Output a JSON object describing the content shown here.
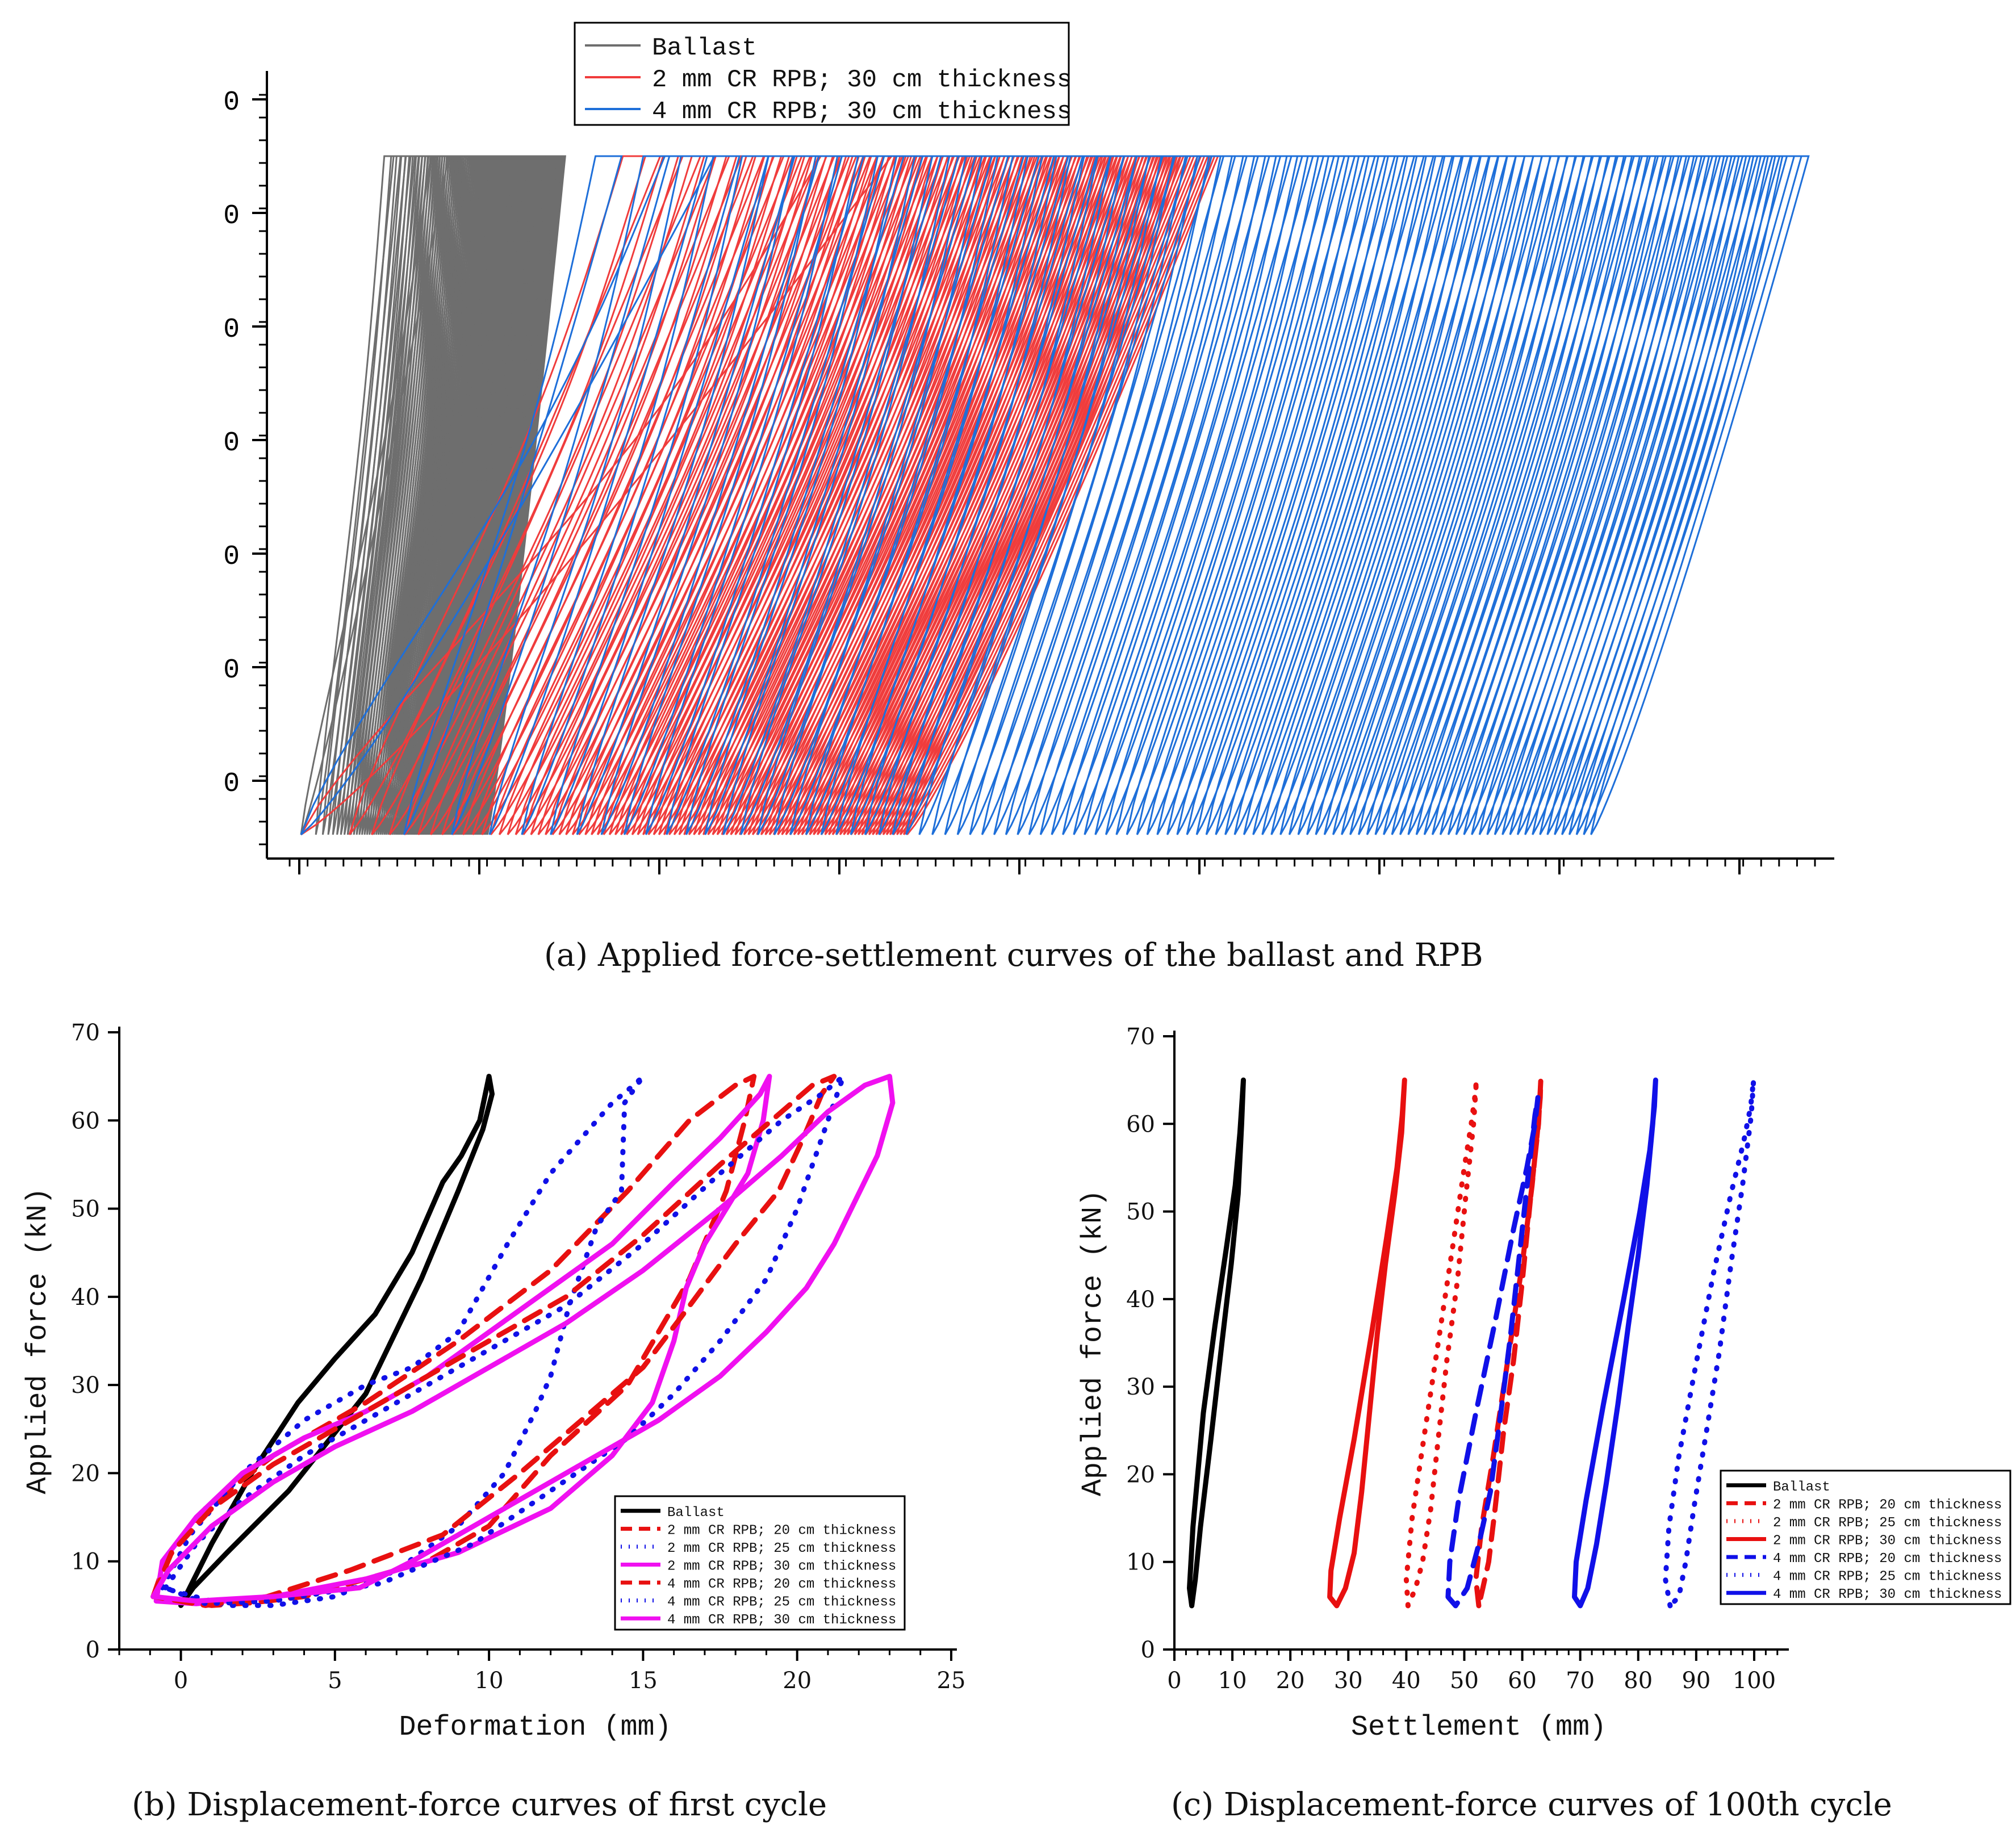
{
  "chart_data": [
    {
      "id": "a",
      "type": "line",
      "caption": "(a) Applied force-settlement curves of the ballast and RPB",
      "y_tick_labels": [
        "0",
        "0",
        "0",
        "0",
        "0",
        "0",
        "0"
      ],
      "x_tick_labels": [],
      "xlim": [
        0,
        95
      ],
      "ylim": [
        0,
        70
      ],
      "legend": {
        "position": "top-center",
        "entries": [
          {
            "name": "Ballast",
            "color": "#6e6e6e"
          },
          {
            "name": "2 mm CR RPB; 30 cm thickness",
            "color": "#f03c3c"
          },
          {
            "name": "4 mm CR RPB; 30 cm thickness",
            "color": "#1e6fd9"
          }
        ]
      },
      "series": [
        {
          "name": "Ballast",
          "color": "#6e6e6e",
          "cycles": 100,
          "first_cycle_start": 0,
          "settlement_range": [
            0,
            12
          ],
          "loop_width": 5
        },
        {
          "name": "2 mm CR RPB; 30 cm thickness",
          "color": "#f03c3c",
          "cycles": 100,
          "first_cycle_start": 0,
          "settlement_range": [
            0,
            39
          ],
          "loop_width": 20
        },
        {
          "name": "4 mm CR RPB; 30 cm thickness",
          "color": "#1e6fd9",
          "cycles": 100,
          "first_cycle_start": 0,
          "settlement_range": [
            0,
            83
          ],
          "loop_width": 14
        }
      ],
      "force_range": [
        5,
        65
      ]
    },
    {
      "id": "b",
      "type": "line",
      "caption": "(b) Displacement-force curves of first cycle",
      "xlabel": "Deformation (mm)",
      "ylabel": "Applied force (kN)",
      "xlim": [
        -2,
        25
      ],
      "ylim": [
        0,
        70
      ],
      "x_ticks": [
        0,
        5,
        10,
        15,
        20,
        25
      ],
      "x_tick_labels": [
        "0",
        "5",
        "10",
        "15",
        "20",
        "25"
      ],
      "y_ticks": [
        0,
        10,
        20,
        30,
        40,
        50,
        60,
        70
      ],
      "y_tick_labels": [
        "0",
        "10",
        "20",
        "30",
        "40",
        "50",
        "60",
        "70"
      ],
      "legend": {
        "position": "bottom-right",
        "entries": [
          {
            "name": "Ballast",
            "color": "#000000",
            "style": "solid"
          },
          {
            "name": "2 mm CR RPB; 20 cm thickness",
            "color": "#e81010",
            "style": "dashed"
          },
          {
            "name": "2 mm CR RPB; 25 cm thickness",
            "color": "#1010e8",
            "style": "dotted"
          },
          {
            "name": "2 mm CR RPB; 30 cm thickness",
            "color": "#f010f0",
            "style": "solid"
          },
          {
            "name": "4 mm CR RPB; 20 cm thickness",
            "color": "#e81010",
            "style": "dashed"
          },
          {
            "name": "4 mm CR RPB; 25 cm thickness",
            "color": "#1010e8",
            "style": "dotted"
          },
          {
            "name": "4 mm CR RPB; 30 cm thickness",
            "color": "#f010f0",
            "style": "solid"
          }
        ]
      },
      "series": [
        {
          "name": "Ballast",
          "color": "#000000",
          "style": "solid",
          "x": [
            0,
            0.4,
            1.5,
            3.5,
            6,
            7.8,
            9,
            9.8,
            10.1,
            10.0,
            9.7,
            9.1,
            8.5,
            7.5,
            6.3,
            5,
            3.8,
            2.3,
            1,
            0
          ],
          "y": [
            5,
            7,
            11,
            18,
            29,
            42,
            52,
            59,
            63,
            65,
            60,
            56,
            53,
            45,
            38,
            33,
            28,
            20,
            12,
            5
          ]
        },
        {
          "name": "2 mm CR RPB; 20 cm thickness",
          "color": "#e81010",
          "style": "dashed",
          "x": [
            -0.9,
            -0.5,
            0.8,
            3,
            6,
            9,
            12,
            14.5,
            16.5,
            18,
            18.6,
            18.3,
            17.7,
            16.5,
            14.5,
            12,
            10,
            8,
            6,
            4,
            2.3,
            1,
            -0.9
          ],
          "y": [
            6,
            10,
            16,
            22,
            28,
            35,
            43,
            52,
            60,
            64,
            65,
            60,
            52,
            42,
            30,
            22,
            14,
            10,
            8,
            6,
            5.3,
            5,
            6
          ]
        },
        {
          "name": "2 mm CR RPB; 25 cm thickness",
          "color": "#1010e8",
          "style": "dotted",
          "x": [
            -0.6,
            0.3,
            2,
            4,
            6,
            7.5,
            9,
            10.6,
            12,
            13,
            14,
            14.7,
            15,
            14.4,
            14.3,
            13.5,
            12.6,
            12,
            11.5,
            10.5,
            9,
            7,
            5,
            3,
            1.5,
            -0.6
          ],
          "y": [
            7,
            13,
            20,
            26,
            30,
            32,
            36,
            46,
            54,
            58,
            62,
            64,
            65,
            62,
            52,
            48,
            39,
            31,
            27,
            20,
            14,
            9,
            6,
            5,
            5,
            7
          ]
        },
        {
          "name": "2 mm CR RPB; 30 cm thickness",
          "color": "#f010f0",
          "style": "solid",
          "x": [
            -0.8,
            -0.6,
            0.5,
            2,
            4,
            6,
            8,
            10,
            12,
            14,
            16,
            17.5,
            18.8,
            19.1,
            18.9,
            18.4,
            17.7,
            17,
            16.4,
            16,
            15.3,
            14,
            12,
            9,
            6,
            3,
            0.5,
            -0.8
          ],
          "y": [
            5.5,
            10,
            15,
            20,
            24,
            27,
            31,
            36,
            41,
            46,
            53,
            58,
            63,
            65,
            60,
            54,
            50,
            46,
            41,
            35,
            28,
            22,
            16,
            11,
            8,
            6,
            5.2,
            5.5
          ]
        },
        {
          "name": "4 mm CR RPB; 20 cm thickness",
          "color": "#e81010",
          "style": "dashed",
          "x": [
            -0.9,
            -0.3,
            1,
            3,
            5.5,
            8,
            10,
            12.5,
            15,
            17.5,
            19.5,
            20.5,
            21.2,
            20.8,
            20.2,
            19.4,
            18,
            16.3,
            15,
            13,
            11,
            8.5,
            5.5,
            2.8,
            0.8,
            -0.9
          ],
          "y": [
            6,
            11,
            16,
            21,
            26,
            31,
            35,
            40,
            47,
            55,
            61,
            64,
            65,
            63,
            58,
            52,
            46,
            38,
            32,
            26,
            20,
            13,
            9,
            6,
            5,
            6
          ]
        },
        {
          "name": "4 mm CR RPB; 25 cm thickness",
          "color": "#1010e8",
          "style": "dotted",
          "x": [
            -0.5,
            0.5,
            2,
            4,
            6,
            8,
            10,
            12.5,
            15,
            17.5,
            19.5,
            20.8,
            21.5,
            21.3,
            20.8,
            20,
            19,
            17.5,
            16,
            14.5,
            12,
            9.5,
            6.5,
            3,
            0.8,
            -0.5
          ],
          "y": [
            7,
            12,
            17,
            22,
            26,
            30,
            34,
            39,
            46,
            54,
            60,
            63,
            65,
            63,
            58,
            50,
            42,
            35,
            29,
            24,
            18,
            12,
            7.5,
            5.5,
            5.2,
            7
          ]
        },
        {
          "name": "4 mm CR RPB; 30 cm thickness",
          "color": "#f010f0",
          "style": "solid",
          "x": [
            -0.9,
            -0.4,
            1,
            3,
            5,
            7.5,
            10,
            12.5,
            15,
            17.5,
            19.5,
            21,
            22.2,
            23.0,
            23.1,
            22.6,
            21.9,
            21.2,
            20.3,
            19,
            17.5,
            15.5,
            13.5,
            11.5,
            9.5,
            7.5,
            5.8,
            3,
            0.5,
            -0.9
          ],
          "y": [
            6,
            9,
            14,
            19,
            23,
            27,
            32,
            37,
            43,
            50,
            56,
            61,
            64,
            65,
            62,
            56,
            51,
            46,
            41,
            36,
            31,
            26,
            22,
            18,
            14,
            10,
            7,
            6,
            5.5,
            6
          ]
        }
      ]
    },
    {
      "id": "c",
      "type": "line",
      "caption": "(c) Displacement-force curves of 100th cycle",
      "xlabel": "Settlement (mm)",
      "ylabel": "Applied force (kN)",
      "xlim": [
        0,
        105
      ],
      "ylim": [
        0,
        70
      ],
      "x_ticks": [
        0,
        10,
        20,
        30,
        40,
        50,
        60,
        70,
        80,
        90,
        100
      ],
      "x_tick_labels": [
        "0",
        "10",
        "20",
        "30",
        "40",
        "50",
        "60",
        "70",
        "80",
        "90",
        "100"
      ],
      "y_ticks": [
        0,
        10,
        20,
        30,
        40,
        50,
        60,
        70
      ],
      "y_tick_labels": [
        "0",
        "10",
        "20",
        "30",
        "40",
        "50",
        "60",
        "70"
      ],
      "legend": {
        "position": "right",
        "entries": [
          {
            "name": "Ballast",
            "color": "#000000",
            "style": "solid"
          },
          {
            "name": "2 mm CR RPB; 20 cm thickness",
            "color": "#e81010",
            "style": "dashed"
          },
          {
            "name": "2 mm CR RPB; 25 cm thickness",
            "color": "#e81010",
            "style": "dotted"
          },
          {
            "name": "2 mm CR RPB; 30 cm thickness",
            "color": "#e81010",
            "style": "solid"
          },
          {
            "name": "4 mm CR RPB; 20 cm thickness",
            "color": "#1010e8",
            "style": "dashed"
          },
          {
            "name": "4 mm CR RPB; 25 cm thickness",
            "color": "#1010e8",
            "style": "dotted"
          },
          {
            "name": "4 mm CR RPB; 30 cm thickness",
            "color": "#1010e8",
            "style": "solid"
          }
        ]
      },
      "series": [
        {
          "name": "Ballast",
          "color": "#000000",
          "style": "solid",
          "x": [
            3,
            2.6,
            3.2,
            5,
            7,
            9,
            10.5,
            11.3,
            11.7,
            11.9,
            11.6,
            11,
            9.8,
            8.2,
            6.3,
            4.5,
            3.6,
            3
          ],
          "y": [
            5,
            7,
            14,
            27,
            37,
            46,
            53,
            59,
            63,
            65,
            60,
            52,
            44,
            35,
            24,
            14,
            8,
            5
          ]
        },
        {
          "name": "2 mm CR RPB; 20 cm thickness",
          "color": "#e81010",
          "style": "dashed",
          "x": [
            52.5,
            52,
            53,
            55,
            57.5,
            60,
            61.7,
            62.6,
            63.1,
            63.2,
            62.8,
            61.5,
            60,
            58.5,
            56.8,
            55.3,
            54.2,
            53.2,
            52.5
          ],
          "y": [
            5,
            8,
            14,
            22,
            33,
            44,
            53,
            59,
            63,
            65,
            60,
            52,
            42,
            33,
            25,
            16,
            10,
            7,
            5
          ]
        },
        {
          "name": "2 mm CR RPB; 25 cm thickness",
          "color": "#e81010",
          "style": "dotted",
          "x": [
            40.3,
            40,
            41,
            43,
            45.5,
            48,
            50,
            51.2,
            51.8,
            52.1,
            51.6,
            50.3,
            48.8,
            47,
            45.5,
            44.2,
            42.8,
            41.6,
            40.3
          ],
          "y": [
            5,
            8,
            15,
            24,
            35,
            46,
            55,
            60,
            63,
            65,
            60,
            52,
            42,
            33,
            24,
            16,
            10,
            7,
            5
          ]
        },
        {
          "name": "2 mm CR RPB; 30 cm thickness",
          "color": "#e81010",
          "style": "solid",
          "x": [
            28,
            26.8,
            27,
            28.5,
            31,
            34,
            36.6,
            38.4,
            39.3,
            39.7,
            39.2,
            38,
            36.4,
            35,
            33.5,
            32.3,
            31,
            29.5,
            28
          ],
          "y": [
            5,
            6,
            9,
            15,
            24,
            36,
            47,
            55,
            61,
            65,
            59,
            52,
            44,
            36,
            26,
            18,
            11,
            7,
            5
          ]
        },
        {
          "name": "4 mm CR RPB; 20 cm thickness",
          "color": "#1010e8",
          "style": "dashed",
          "x": [
            48.5,
            47.2,
            47.5,
            49,
            52,
            55.5,
            58.5,
            60.8,
            62.2,
            62.7,
            62.2,
            61,
            59.5,
            58,
            56.3,
            54.5,
            52.5,
            50.5,
            48.5
          ],
          "y": [
            5,
            6,
            10,
            17,
            27,
            38,
            48,
            55,
            60,
            63,
            61,
            54,
            45,
            36,
            27,
            18,
            12,
            7,
            5
          ]
        },
        {
          "name": "4 mm CR RPB; 25 cm thickness",
          "color": "#1010e8",
          "style": "dotted",
          "x": [
            85.5,
            84.7,
            85.3,
            87,
            89.8,
            93,
            96,
            98.2,
            99.4,
            99.9,
            99.5,
            98,
            96,
            94,
            91.8,
            89.8,
            88.2,
            87,
            85.5
          ],
          "y": [
            5,
            8,
            14,
            22,
            32,
            43,
            52,
            58,
            62,
            65,
            61,
            53,
            44,
            34,
            25,
            17,
            10,
            6,
            5
          ]
        },
        {
          "name": "4 mm CR RPB; 30 cm thickness",
          "color": "#1010e8",
          "style": "solid",
          "x": [
            70,
            69,
            69.3,
            71,
            74,
            77.5,
            80.3,
            82,
            82.8,
            83,
            82.5,
            81.5,
            80,
            78.3,
            76.5,
            74.5,
            72.8,
            71.3,
            70
          ],
          "y": [
            5,
            6,
            10,
            17,
            28,
            40,
            50,
            57,
            62,
            65,
            60,
            53,
            45,
            37,
            28,
            19,
            12,
            7,
            5
          ]
        }
      ]
    }
  ]
}
